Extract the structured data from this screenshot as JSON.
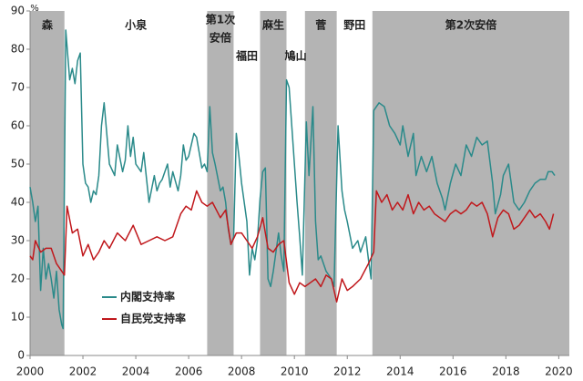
{
  "chart_data": {
    "type": "line",
    "y_label": "%",
    "xlim": [
      2000,
      2020.4
    ],
    "ylim": [
      0,
      90
    ],
    "xticks": [
      2000,
      2002,
      2004,
      2006,
      2008,
      2010,
      2012,
      2014,
      2016,
      2018,
      2020
    ],
    "yticks": [
      0,
      10,
      20,
      30,
      40,
      50,
      60,
      70,
      80,
      90
    ],
    "grid": false,
    "legend": "lower left",
    "periods": [
      {
        "name": [
          "森"
        ],
        "start": 2000,
        "end": 2001.3,
        "shaded": true
      },
      {
        "name": [
          "小泉"
        ],
        "start": 2001.3,
        "end": 2006.7,
        "shaded": false
      },
      {
        "name": [
          "第1次",
          "安倍"
        ],
        "start": 2006.7,
        "end": 2007.7,
        "shaded": true
      },
      {
        "name": [
          "福田"
        ],
        "start": 2007.7,
        "end": 2008.7,
        "shaded": false
      },
      {
        "name": [
          "麻生"
        ],
        "start": 2008.7,
        "end": 2009.7,
        "shaded": true
      },
      {
        "name": [
          "鳩山"
        ],
        "start": 2009.7,
        "end": 2010.4,
        "shaded": false
      },
      {
        "name": [
          "菅"
        ],
        "start": 2010.4,
        "end": 2011.6,
        "shaded": true
      },
      {
        "name": [
          "野田"
        ],
        "start": 2011.6,
        "end": 2012.95,
        "shaded": false
      },
      {
        "name": [
          "第2次安倍"
        ],
        "start": 2012.95,
        "end": 2020.4,
        "shaded": true
      }
    ],
    "series": [
      {
        "name": "内閣支持率",
        "color": "#2a8a8a",
        "x": [
          2000.0,
          2000.1,
          2000.2,
          2000.3,
          2000.4,
          2000.5,
          2000.6,
          2000.7,
          2000.8,
          2000.9,
          2001.0,
          2001.1,
          2001.2,
          2001.25,
          2001.35,
          2001.5,
          2001.6,
          2001.7,
          2001.8,
          2001.9,
          2002.0,
          2002.1,
          2002.2,
          2002.3,
          2002.4,
          2002.5,
          2002.6,
          2002.7,
          2002.8,
          2002.9,
          2003.0,
          2003.2,
          2003.3,
          2003.5,
          2003.6,
          2003.7,
          2003.8,
          2003.9,
          2004.0,
          2004.2,
          2004.3,
          2004.5,
          2004.7,
          2004.8,
          2004.9,
          2005.0,
          2005.2,
          2005.3,
          2005.4,
          2005.6,
          2005.7,
          2005.8,
          2005.9,
          2006.0,
          2006.2,
          2006.3,
          2006.5,
          2006.6,
          2006.7,
          2006.8,
          2006.9,
          2007.0,
          2007.2,
          2007.3,
          2007.4,
          2007.5,
          2007.6,
          2007.7,
          2007.8,
          2007.9,
          2008.0,
          2008.1,
          2008.2,
          2008.3,
          2008.4,
          2008.5,
          2008.6,
          2008.7,
          2008.8,
          2008.9,
          2009.0,
          2009.1,
          2009.2,
          2009.3,
          2009.4,
          2009.5,
          2009.6,
          2009.7,
          2009.8,
          2009.9,
          2010.0,
          2010.1,
          2010.2,
          2010.3,
          2010.45,
          2010.55,
          2010.7,
          2010.8,
          2010.9,
          2011.0,
          2011.2,
          2011.4,
          2011.5,
          2011.65,
          2011.8,
          2011.9,
          2012.0,
          2012.2,
          2012.4,
          2012.5,
          2012.7,
          2012.8,
          2012.9,
          2013.0,
          2013.2,
          2013.4,
          2013.6,
          2013.8,
          2014.0,
          2014.1,
          2014.3,
          2014.5,
          2014.6,
          2014.8,
          2015.0,
          2015.2,
          2015.4,
          2015.6,
          2015.7,
          2015.9,
          2016.1,
          2016.3,
          2016.5,
          2016.7,
          2016.9,
          2017.1,
          2017.3,
          2017.5,
          2017.6,
          2017.8,
          2017.9,
          2018.1,
          2018.3,
          2018.5,
          2018.7,
          2018.9,
          2019.1,
          2019.3,
          2019.5,
          2019.6,
          2019.75,
          2019.85
        ],
        "values": [
          44,
          40,
          35,
          39,
          17,
          28,
          20,
          24,
          20,
          15,
          22,
          12,
          8,
          7,
          85,
          72,
          75,
          71,
          77,
          79,
          50,
          45,
          44,
          40,
          43,
          42,
          47,
          60,
          66,
          58,
          50,
          47,
          55,
          48,
          51,
          60,
          52,
          57,
          50,
          48,
          53,
          40,
          47,
          43,
          45,
          46,
          50,
          44,
          48,
          43,
          47,
          55,
          51,
          52,
          58,
          57,
          49,
          50,
          48,
          65,
          53,
          50,
          43,
          44,
          40,
          33,
          29,
          31,
          58,
          52,
          45,
          40,
          35,
          21,
          28,
          25,
          30,
          41,
          48,
          49,
          20,
          18,
          22,
          27,
          32,
          26,
          22,
          72,
          70,
          60,
          50,
          40,
          31,
          21,
          61,
          47,
          65,
          35,
          25,
          26,
          22,
          20,
          18,
          60,
          43,
          38,
          35,
          28,
          30,
          27,
          31,
          25,
          20,
          64,
          66,
          65,
          60,
          58,
          55,
          60,
          52,
          58,
          47,
          52,
          48,
          52,
          45,
          41,
          38,
          45,
          50,
          47,
          55,
          52,
          57,
          55,
          56,
          45,
          37,
          42,
          47,
          50,
          40,
          38,
          40,
          43,
          45,
          46,
          46,
          48,
          48,
          47
        ]
      },
      {
        "name": "自民党支持率",
        "color": "#c0181c",
        "x": [
          2000.0,
          2000.1,
          2000.2,
          2000.4,
          2000.6,
          2000.8,
          2001.0,
          2001.2,
          2001.3,
          2001.4,
          2001.6,
          2001.8,
          2002.0,
          2002.2,
          2002.4,
          2002.6,
          2002.8,
          2003.0,
          2003.3,
          2003.6,
          2003.9,
          2004.2,
          2004.5,
          2004.8,
          2005.1,
          2005.4,
          2005.7,
          2005.9,
          2006.1,
          2006.3,
          2006.5,
          2006.7,
          2006.9,
          2007.2,
          2007.4,
          2007.6,
          2007.8,
          2008.0,
          2008.2,
          2008.4,
          2008.6,
          2008.8,
          2009.0,
          2009.2,
          2009.4,
          2009.6,
          2009.8,
          2010.0,
          2010.2,
          2010.4,
          2010.6,
          2010.8,
          2011.0,
          2011.2,
          2011.4,
          2011.6,
          2011.8,
          2012.0,
          2012.2,
          2012.5,
          2012.8,
          2013.0,
          2013.1,
          2013.3,
          2013.5,
          2013.7,
          2013.9,
          2014.1,
          2014.3,
          2014.5,
          2014.7,
          2014.9,
          2015.1,
          2015.3,
          2015.5,
          2015.7,
          2015.9,
          2016.1,
          2016.3,
          2016.5,
          2016.7,
          2016.9,
          2017.1,
          2017.3,
          2017.5,
          2017.7,
          2017.9,
          2018.1,
          2018.3,
          2018.5,
          2018.7,
          2018.9,
          2019.1,
          2019.3,
          2019.5,
          2019.65,
          2019.8
        ],
        "values": [
          26,
          25,
          30,
          27,
          28,
          28,
          24,
          22,
          21,
          39,
          32,
          33,
          26,
          29,
          25,
          27,
          30,
          28,
          32,
          30,
          34,
          29,
          30,
          31,
          30,
          31,
          37,
          39,
          38,
          43,
          40,
          39,
          40,
          36,
          38,
          29,
          32,
          32,
          30,
          28,
          31,
          36,
          28,
          27,
          29,
          30,
          19,
          16,
          19,
          18,
          19,
          20,
          18,
          21,
          20,
          14,
          20,
          17,
          18,
          20,
          24,
          27,
          43,
          40,
          42,
          38,
          40,
          38,
          42,
          37,
          40,
          38,
          39,
          37,
          36,
          35,
          37,
          38,
          37,
          38,
          40,
          39,
          40,
          37,
          31,
          36,
          38,
          37,
          33,
          34,
          36,
          38,
          36,
          37,
          35,
          33,
          37
        ]
      }
    ]
  }
}
